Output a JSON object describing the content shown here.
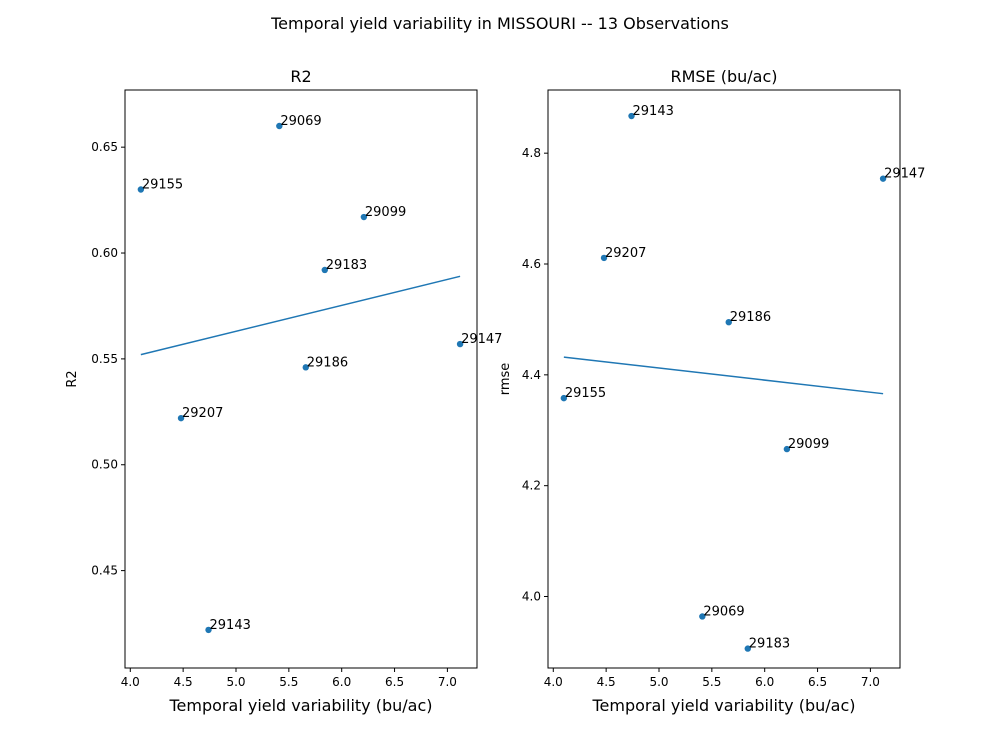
{
  "figure": {
    "suptitle": "Temporal yield variability in MISSOURI -- 13 Observations"
  },
  "chart_data": [
    {
      "type": "scatter",
      "title": "R2",
      "xlabel": "Temporal yield variability (bu/ac)",
      "ylabel": "R2",
      "xlim": [
        3.95,
        7.28
      ],
      "ylim": [
        0.404,
        0.677
      ],
      "xticks": [
        4.0,
        4.5,
        5.0,
        5.5,
        6.0,
        6.5,
        7.0
      ],
      "xtick_labels": [
        "4.0",
        "4.5",
        "5.0",
        "5.5",
        "6.0",
        "6.5",
        "7.0"
      ],
      "yticks": [
        0.45,
        0.5,
        0.55,
        0.6,
        0.65
      ],
      "ytick_labels": [
        "0.45",
        "0.50",
        "0.55",
        "0.60",
        "0.65"
      ],
      "grid": false,
      "point_color": "#1f77b4",
      "line_color": "#1f77b4",
      "points": [
        {
          "label": "29069",
          "x": 5.41,
          "y": 0.66
        },
        {
          "label": "29155",
          "x": 4.1,
          "y": 0.63
        },
        {
          "label": "29099",
          "x": 6.21,
          "y": 0.617
        },
        {
          "label": "29183",
          "x": 5.84,
          "y": 0.592
        },
        {
          "label": "29147",
          "x": 7.12,
          "y": 0.557
        },
        {
          "label": "29186",
          "x": 5.66,
          "y": 0.546
        },
        {
          "label": "29207",
          "x": 4.48,
          "y": 0.522
        },
        {
          "label": "29143",
          "x": 4.74,
          "y": 0.422
        }
      ],
      "fit_line": {
        "x": [
          4.1,
          7.12
        ],
        "y": [
          0.552,
          0.589
        ]
      }
    },
    {
      "type": "scatter",
      "title": "RMSE (bu/ac)",
      "xlabel": "Temporal yield variability (bu/ac)",
      "ylabel": "rmse",
      "xlim": [
        3.95,
        7.28
      ],
      "ylim": [
        3.871,
        4.914
      ],
      "xticks": [
        4.0,
        4.5,
        5.0,
        5.5,
        6.0,
        6.5,
        7.0
      ],
      "xtick_labels": [
        "4.0",
        "4.5",
        "5.0",
        "5.5",
        "6.0",
        "6.5",
        "7.0"
      ],
      "yticks": [
        4.0,
        4.2,
        4.4,
        4.6,
        4.8
      ],
      "ytick_labels": [
        "4.0",
        "4.2",
        "4.4",
        "4.6",
        "4.8"
      ],
      "grid": false,
      "point_color": "#1f77b4",
      "line_color": "#1f77b4",
      "points": [
        {
          "label": "29143",
          "x": 4.74,
          "y": 4.867
        },
        {
          "label": "29147",
          "x": 7.12,
          "y": 4.754
        },
        {
          "label": "29207",
          "x": 4.48,
          "y": 4.611
        },
        {
          "label": "29186",
          "x": 5.66,
          "y": 4.495
        },
        {
          "label": "29155",
          "x": 4.1,
          "y": 4.358
        },
        {
          "label": "29099",
          "x": 6.21,
          "y": 4.266
        },
        {
          "label": "29069",
          "x": 5.41,
          "y": 3.964
        },
        {
          "label": "29183",
          "x": 5.84,
          "y": 3.906
        }
      ],
      "fit_line": {
        "x": [
          4.1,
          7.12
        ],
        "y": [
          4.432,
          4.366
        ]
      }
    }
  ]
}
